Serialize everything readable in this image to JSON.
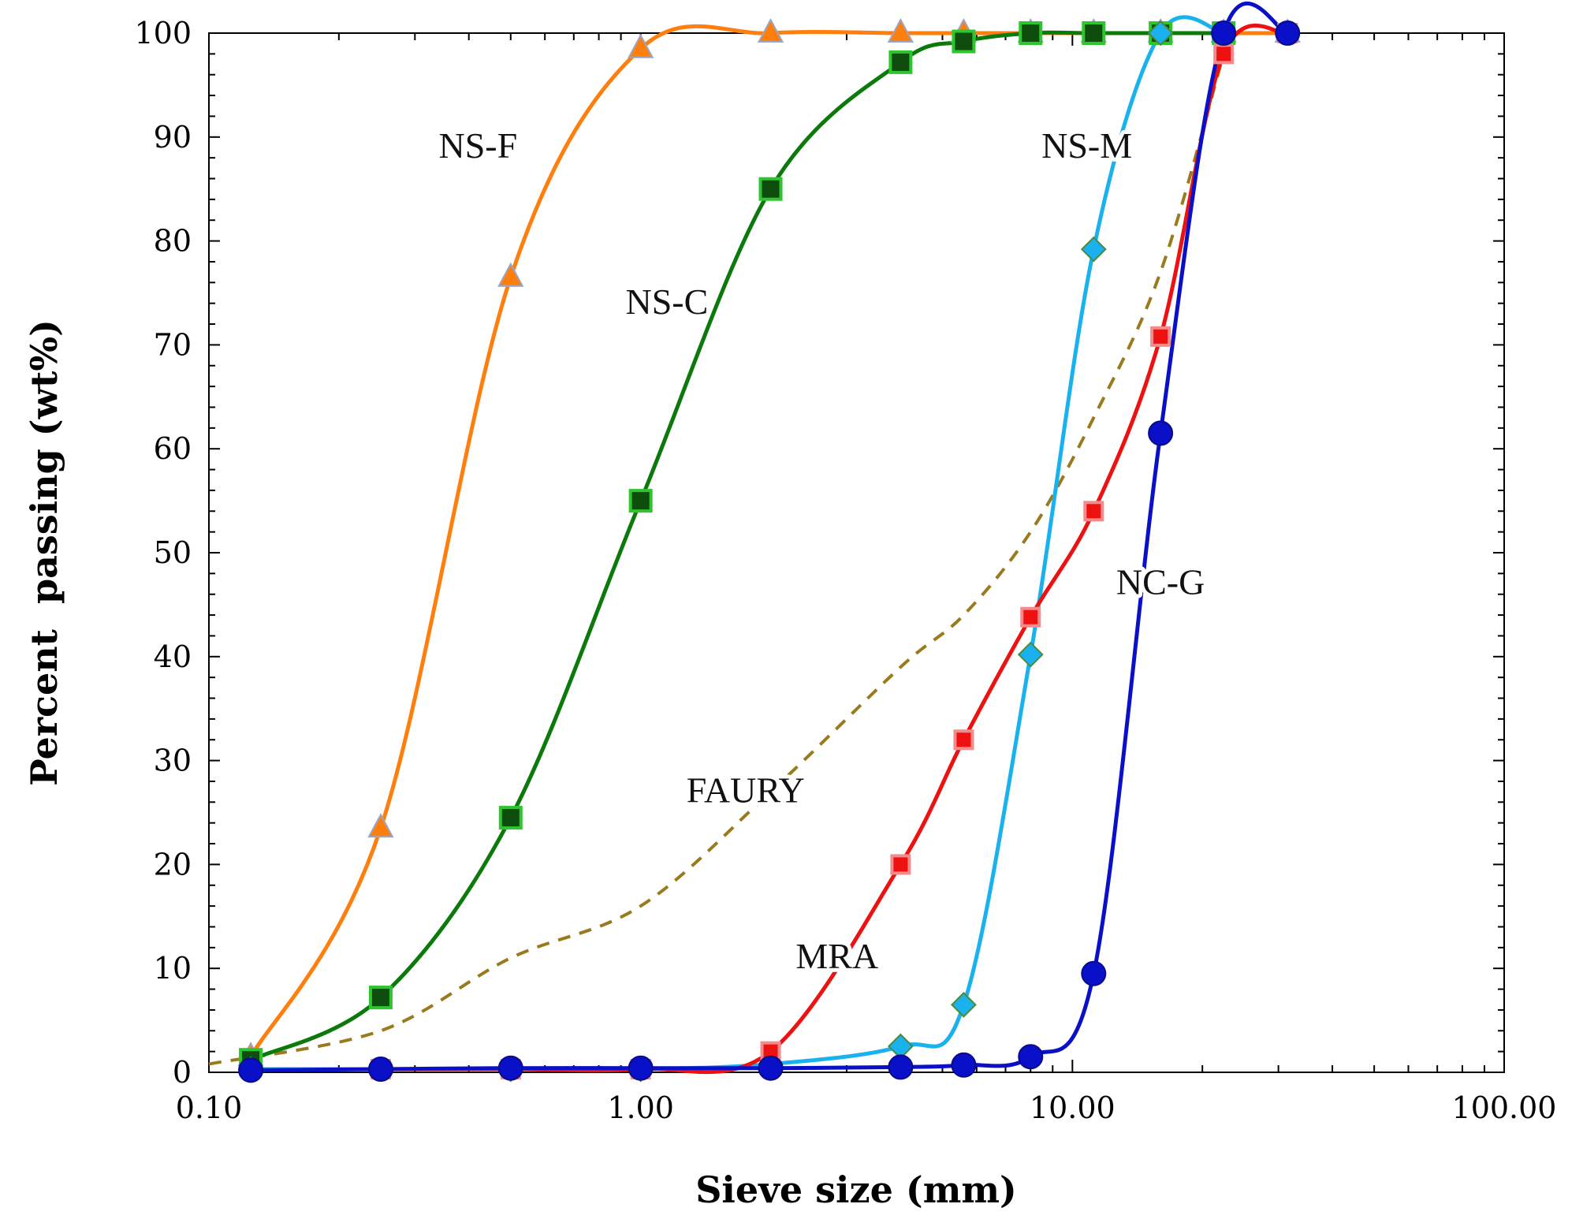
{
  "chart_data": {
    "type": "line",
    "title": "",
    "xlabel": "Sieve size (mm)",
    "ylabel": "Percent  passing (wt%)",
    "xscale": "log",
    "xlim": [
      0.1,
      100
    ],
    "ylim": [
      0,
      100
    ],
    "grid": false,
    "x_ticks": [
      0.1,
      1,
      10,
      100
    ],
    "x_tick_labels": [
      "0.10",
      "1.00",
      "10.00",
      "100.00"
    ],
    "y_ticks": [
      0,
      10,
      20,
      30,
      40,
      50,
      60,
      70,
      80,
      90,
      100
    ],
    "y_tick_labels": [
      "0",
      "10",
      "20",
      "30",
      "40",
      "50",
      "60",
      "70",
      "80",
      "90",
      "100"
    ],
    "series": [
      {
        "name": "FAURY",
        "label": "FAURY",
        "color": "#9a7a1e",
        "line_style": "dashed",
        "marker": "none",
        "x": [
          0.1,
          0.25,
          0.5,
          1.0,
          2.0,
          4.0,
          5.6,
          8.0,
          11.2,
          16.0,
          22.4
        ],
        "y": [
          0.8,
          4.0,
          11.0,
          16.0,
          27.0,
          39.0,
          44.0,
          52.0,
          63.0,
          77.0,
          98.0
        ]
      },
      {
        "name": "NS-F",
        "label": "NS-F",
        "color": "#ff7f0e",
        "line_style": "solid",
        "marker": "triangle",
        "x": [
          0.125,
          0.25,
          0.5,
          1.0,
          2.0,
          4.0,
          5.6,
          8.0,
          11.2,
          16.0,
          22.4,
          31.5
        ],
        "y": [
          1.5,
          23.5,
          76.5,
          98.5,
          100,
          100,
          100,
          100,
          100,
          100,
          100,
          100
        ]
      },
      {
        "name": "NS-C",
        "label": "NS-C",
        "color": "#0b7a0b",
        "line_style": "solid",
        "marker": "square",
        "x": [
          0.125,
          0.25,
          0.5,
          1.0,
          2.0,
          4.0,
          5.6,
          8.0,
          11.2,
          16.0,
          22.4
        ],
        "y": [
          1.2,
          7.2,
          24.5,
          55.0,
          85.0,
          97.2,
          99.2,
          100,
          100,
          100,
          100
        ]
      },
      {
        "name": "NS-M",
        "label": "NS-M",
        "color": "#1ab2ee",
        "line_style": "solid",
        "marker": "diamond",
        "x": [
          0.125,
          0.25,
          0.5,
          1.0,
          2.0,
          4.0,
          5.6,
          8.0,
          11.2,
          16.0,
          22.4
        ],
        "y": [
          0.3,
          0.3,
          0.3,
          0.3,
          0.8,
          2.5,
          6.5,
          40.2,
          79.2,
          100,
          100
        ]
      },
      {
        "name": "MRA",
        "label": "MRA",
        "color": "#ee1111",
        "line_style": "solid",
        "marker": "square",
        "x": [
          0.25,
          0.5,
          1.0,
          2.0,
          4.0,
          5.6,
          8.0,
          11.2,
          16.0,
          22.4,
          31.5
        ],
        "y": [
          0.3,
          0.3,
          0.3,
          2.0,
          20.0,
          32.0,
          43.8,
          54.0,
          70.8,
          98.0,
          100
        ]
      },
      {
        "name": "NC-G",
        "label": "NC-G",
        "color": "#0a10c8",
        "line_style": "solid",
        "marker": "circle",
        "x": [
          0.125,
          0.25,
          0.5,
          1.0,
          2.0,
          4.0,
          5.6,
          8.0,
          11.2,
          16.0,
          22.4,
          31.5
        ],
        "y": [
          0.2,
          0.3,
          0.4,
          0.4,
          0.4,
          0.5,
          0.7,
          1.5,
          9.5,
          61.5,
          100,
          100
        ]
      }
    ],
    "annotations": [
      {
        "text": "NS-F",
        "x": 0.42,
        "y": 88
      },
      {
        "text": "NS-C",
        "x": 1.15,
        "y": 73
      },
      {
        "text": "NS-M",
        "x": 10.8,
        "y": 88
      },
      {
        "text": "FAURY",
        "x": 1.75,
        "y": 26
      },
      {
        "text": "MRA",
        "x": 2.85,
        "y": 10
      },
      {
        "text": "NC-G",
        "x": 16.0,
        "y": 46
      }
    ]
  }
}
